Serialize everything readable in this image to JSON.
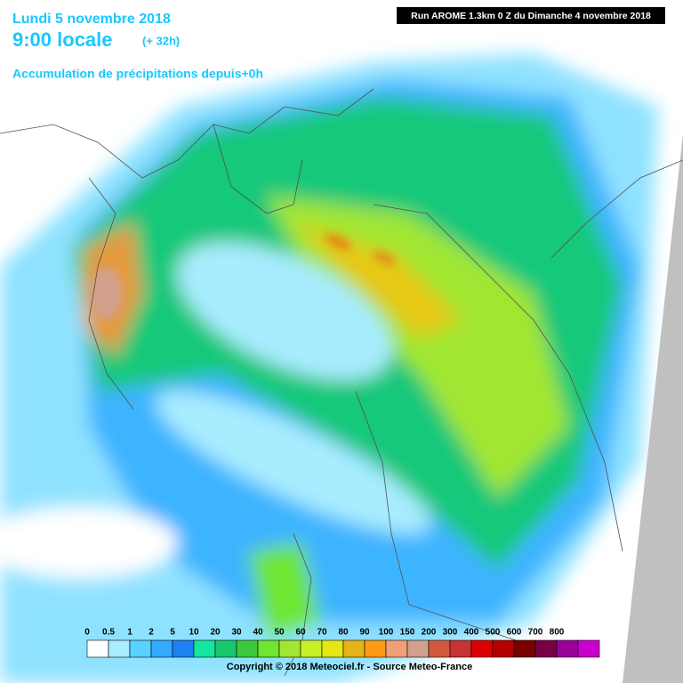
{
  "header": {
    "date": "Lundi 5 novembre 2018",
    "time": "9:00 locale",
    "lead": "(+ 32h)",
    "field": "Accumulation de précipitations depuis+0h",
    "run": "Run AROME 1.3km 0 Z du Dimanche 4 novembre 2018"
  },
  "legend": [
    {
      "label": "0",
      "color": "#ffffff"
    },
    {
      "label": "0.5",
      "color": "#a8ecff"
    },
    {
      "label": "1",
      "color": "#5ad2ff"
    },
    {
      "label": "2",
      "color": "#32aaff"
    },
    {
      "label": "5",
      "color": "#1e82f5"
    },
    {
      "label": "10",
      "color": "#14e6a0"
    },
    {
      "label": "20",
      "color": "#19c86e"
    },
    {
      "label": "30",
      "color": "#3cc83c"
    },
    {
      "label": "40",
      "color": "#6ee632"
    },
    {
      "label": "50",
      "color": "#a0e632"
    },
    {
      "label": "60",
      "color": "#c8f028"
    },
    {
      "label": "70",
      "color": "#e6e614"
    },
    {
      "label": "80",
      "color": "#e6b414"
    },
    {
      "label": "90",
      "color": "#ff9a14"
    },
    {
      "label": "100",
      "color": "#f0a078"
    },
    {
      "label": "150",
      "color": "#d2a08c"
    },
    {
      "label": "200",
      "color": "#d25a3c"
    },
    {
      "label": "300",
      "color": "#c83232"
    },
    {
      "label": "400",
      "color": "#dc0000"
    },
    {
      "label": "500",
      "color": "#b40000"
    },
    {
      "label": "600",
      "color": "#780000"
    },
    {
      "label": "700",
      "color": "#7a0046"
    },
    {
      "label": "800",
      "color": "#9b009b"
    },
    {
      "label": null,
      "color": "#cc00cc"
    }
  ],
  "footer": "Copyright © 2018 Meteociel.fr - Source Meteo-France"
}
